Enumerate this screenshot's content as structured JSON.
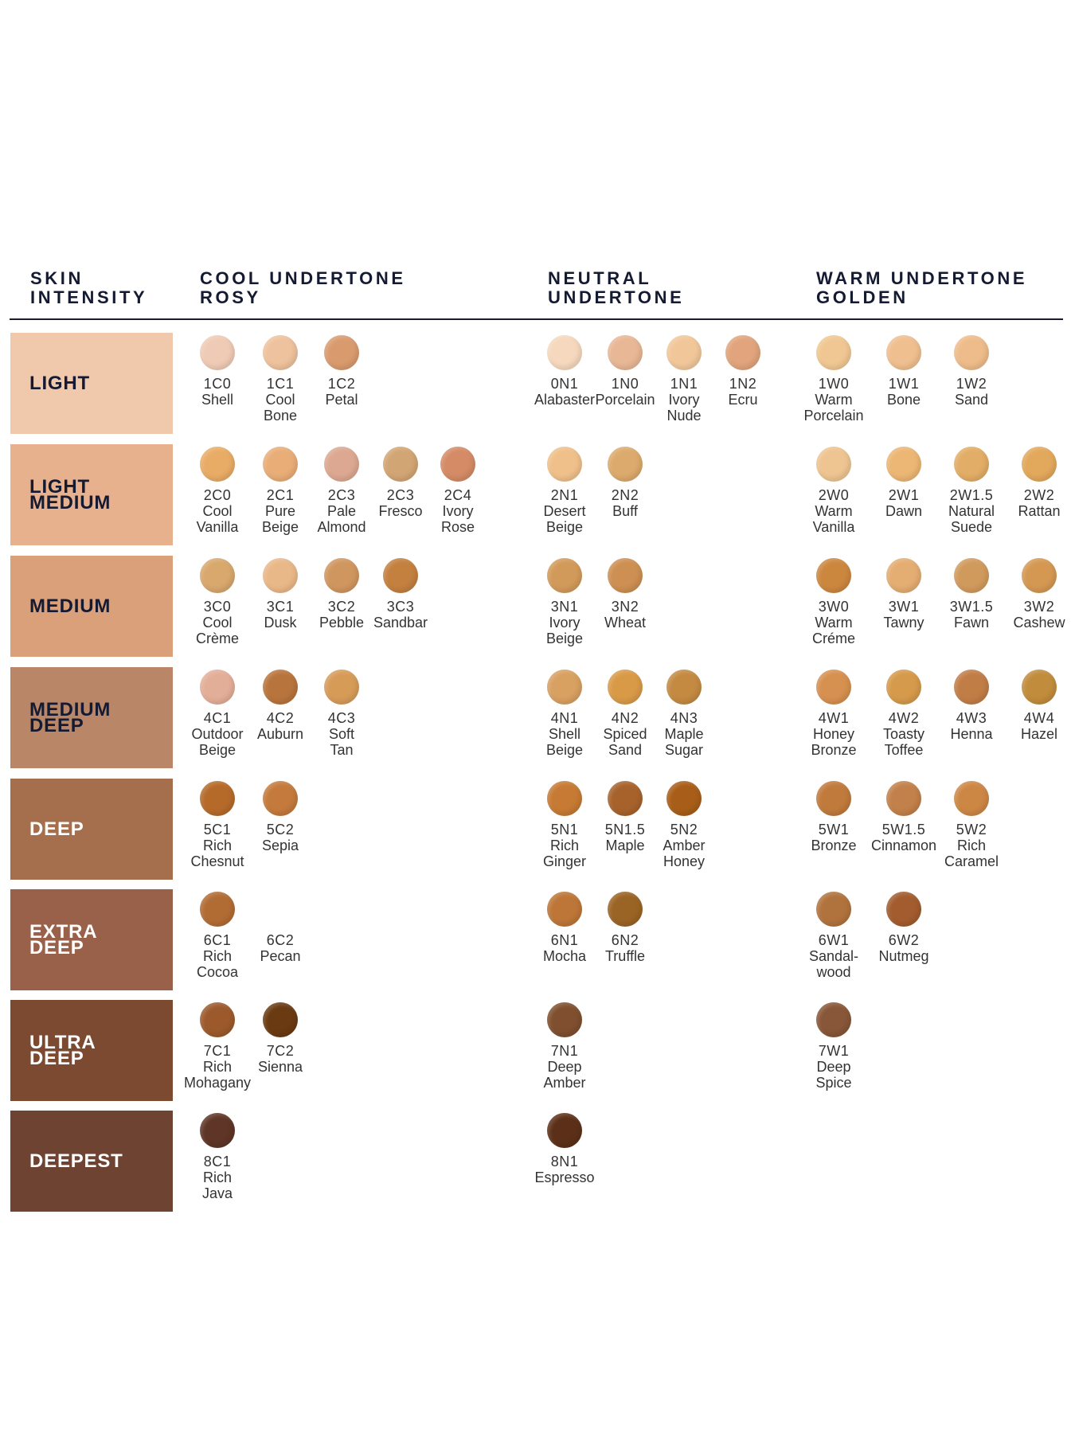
{
  "headers": {
    "skin_intensity": "SKIN\nINTENSITY",
    "cool": "COOL UNDERTONE\nROSY",
    "neutral": "NEUTRAL\nUNDERTONE",
    "warm": "WARM UNDERTONE\nGOLDEN"
  },
  "colors": {
    "header_text": "#151a33",
    "rule": "#1b1d2a",
    "shade_text": "#333333"
  },
  "rows": [
    {
      "label": "LIGHT",
      "bg": "#f0c8ac",
      "text_color": "#151a33",
      "cool": [
        {
          "code": "1C0",
          "name": "Shell",
          "color": "#efcbb5"
        },
        {
          "code": "1C1",
          "name": "Cool\nBone",
          "color": "#eec29d"
        },
        {
          "code": "1C2",
          "name": "Petal",
          "color": "#d99b6e"
        }
      ],
      "neutral": [
        {
          "code": "0N1",
          "name": "Alabaster",
          "color": "#f5d8bd"
        },
        {
          "code": "1N0",
          "name": "Porcelain",
          "color": "#e8b795"
        },
        {
          "code": "1N1",
          "name": "Ivory\nNude",
          "color": "#f1c79a"
        },
        {
          "code": "1N2",
          "name": "Ecru",
          "color": "#e1a47c"
        }
      ],
      "warm": [
        {
          "code": "1W0",
          "name": "Warm\nPorcelain",
          "color": "#f0c792"
        },
        {
          "code": "1W1",
          "name": "Bone",
          "color": "#efbf8f"
        },
        {
          "code": "1W2",
          "name": "Sand",
          "color": "#eebc8a"
        }
      ]
    },
    {
      "label": "LIGHT\nMEDIUM",
      "bg": "#e8b18d",
      "text_color": "#151a33",
      "cool": [
        {
          "code": "2C0",
          "name": "Cool\nVanilla",
          "color": "#e8ac66"
        },
        {
          "code": "2C1",
          "name": "Pure\nBeige",
          "color": "#e9ad78"
        },
        {
          "code": "2C3",
          "name": "Pale\nAlmond",
          "color": "#dca891"
        },
        {
          "code": "2C3",
          "name": "Fresco",
          "color": "#d2a574"
        },
        {
          "code": "2C4",
          "name": "Ivory\nRose",
          "color": "#d48b66"
        }
      ],
      "neutral": [
        {
          "code": "2N1",
          "name": "Desert\nBeige",
          "color": "#efc08a"
        },
        {
          "code": "2N2",
          "name": "Buff",
          "color": "#dcaa6c"
        }
      ],
      "warm": [
        {
          "code": "2W0",
          "name": "Warm\nVanilla",
          "color": "#eec491"
        },
        {
          "code": "2W1",
          "name": "Dawn",
          "color": "#ecb674"
        },
        {
          "code": "2W1.5",
          "name": "Natural\nSuede",
          "color": "#e2ad66"
        },
        {
          "code": "2W2",
          "name": "Rattan",
          "color": "#e2a85c"
        }
      ]
    },
    {
      "label": "MEDIUM",
      "bg": "#d9a07a",
      "text_color": "#151a33",
      "cool": [
        {
          "code": "3C0",
          "name": "Cool\nCrème",
          "color": "#d8a86d"
        },
        {
          "code": "3C1",
          "name": "Dusk",
          "color": "#e9b888"
        },
        {
          "code": "3C2",
          "name": "Pebble",
          "color": "#d0965f"
        },
        {
          "code": "3C3",
          "name": "Sandbar",
          "color": "#c3803f"
        }
      ],
      "neutral": [
        {
          "code": "3N1",
          "name": "Ivory\nBeige",
          "color": "#d29a5a"
        },
        {
          "code": "3N2",
          "name": "Wheat",
          "color": "#cd8f52"
        }
      ],
      "warm": [
        {
          "code": "3W0",
          "name": "Warm\nCréme",
          "color": "#cc873f"
        },
        {
          "code": "3W1",
          "name": "Tawny",
          "color": "#e4ad72"
        },
        {
          "code": "3W1.5",
          "name": "Fawn",
          "color": "#d19a5d"
        },
        {
          "code": "3W2",
          "name": "Cashew",
          "color": "#d49853"
        }
      ]
    },
    {
      "label": "MEDIUM\nDEEP",
      "bg": "#b98767",
      "text_color": "#151a33",
      "cool": [
        {
          "code": "4C1",
          "name": "Outdoor\nBeige",
          "color": "#e3ae98"
        },
        {
          "code": "4C2",
          "name": "Auburn",
          "color": "#b8743d"
        },
        {
          "code": "4C3",
          "name": "Soft\nTan",
          "color": "#d79b58"
        }
      ],
      "neutral": [
        {
          "code": "4N1",
          "name": "Shell\nBeige",
          "color": "#d8a061"
        },
        {
          "code": "4N2",
          "name": "Spiced\nSand",
          "color": "#d99a48"
        },
        {
          "code": "4N3",
          "name": "Maple\nSugar",
          "color": "#c48a42"
        }
      ],
      "warm": [
        {
          "code": "4W1",
          "name": "Honey\nBronze",
          "color": "#d6904f"
        },
        {
          "code": "4W2",
          "name": "Toasty\nToffee",
          "color": "#d59a4b"
        },
        {
          "code": "4W3",
          "name": "Henna",
          "color": "#c17d46"
        },
        {
          "code": "4W4",
          "name": "Hazel",
          "color": "#c18c3c"
        }
      ]
    },
    {
      "label": "DEEP",
      "bg": "#a56e4c",
      "text_color": "#ffffff",
      "cool": [
        {
          "code": "5C1",
          "name": "Rich\nChesnut",
          "color": "#b56a2a"
        },
        {
          "code": "5C2",
          "name": "Sepia",
          "color": "#c47a3c"
        }
      ],
      "neutral": [
        {
          "code": "5N1",
          "name": "Rich\nGinger",
          "color": "#c67a34"
        },
        {
          "code": "5N1.5",
          "name": "Maple",
          "color": "#a7622c"
        },
        {
          "code": "5N2",
          "name": "Amber\nHoney",
          "color": "#a85e18"
        }
      ],
      "warm": [
        {
          "code": "5W1",
          "name": "Bronze",
          "color": "#c07a3c"
        },
        {
          "code": "5W1.5",
          "name": "Cinnamon",
          "color": "#c2804a"
        },
        {
          "code": "5W2",
          "name": "Rich\nCaramel",
          "color": "#cd8745"
        }
      ]
    },
    {
      "label": "EXTRA\nDEEP",
      "bg": "#99614a",
      "text_color": "#ffffff",
      "cool": [
        {
          "code": "6C1",
          "name": "Rich\nCocoa",
          "color": "#b16c33"
        },
        {
          "code": "6C2",
          "name": "Pecan",
          "color": ""
        }
      ],
      "neutral": [
        {
          "code": "6N1",
          "name": "Mocha",
          "color": "#bd7638"
        },
        {
          "code": "6N2",
          "name": "Truffle",
          "color": "#9a6424"
        }
      ],
      "warm": [
        {
          "code": "6W1",
          "name": "Sandal-\nwood",
          "color": "#b1733d"
        },
        {
          "code": "6W2",
          "name": "Nutmeg",
          "color": "#a25c2e"
        }
      ]
    },
    {
      "label": "ULTRA\nDEEP",
      "bg": "#7c4a30",
      "text_color": "#ffffff",
      "cool": [
        {
          "code": "7C1",
          "name": "Rich\nMohagany",
          "color": "#9c5a2c"
        },
        {
          "code": "7C2",
          "name": "Sienna",
          "color": "#6a3a12"
        }
      ],
      "neutral": [
        {
          "code": "7N1",
          "name": "Deep\nAmber",
          "color": "#7f4f2f"
        }
      ],
      "warm": [
        {
          "code": "7W1",
          "name": "Deep\nSpice",
          "color": "#885638"
        }
      ]
    },
    {
      "label": "DEEPEST",
      "bg": "#6e4332",
      "text_color": "#ffffff",
      "cool": [
        {
          "code": "8C1",
          "name": "Rich\nJava",
          "color": "#5e3526"
        }
      ],
      "neutral": [
        {
          "code": "8N1",
          "name": "Espresso",
          "color": "#5c3018"
        }
      ],
      "warm": []
    }
  ]
}
